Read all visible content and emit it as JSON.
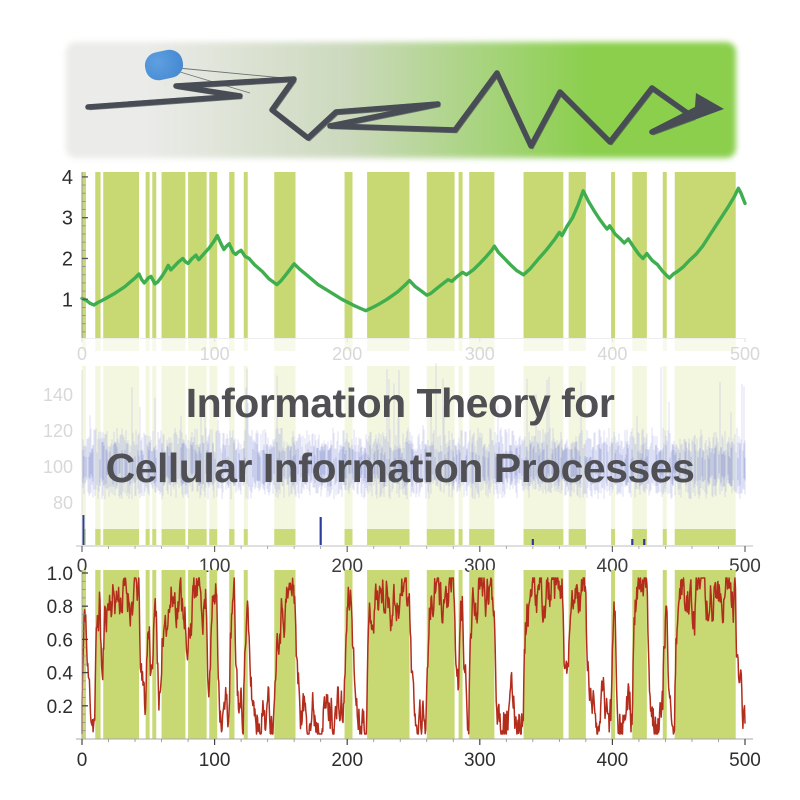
{
  "title": {
    "line1": "Information Theory for",
    "line2": "Cellular Information Processes",
    "color": "#4f4f54"
  },
  "colors": {
    "band": "#c8d973",
    "band_faint_opacity": 0.22,
    "green_line": "#3fae4f",
    "red_line": "#b22d1c",
    "noise_stroke": "rgba(168,175,224,0.40)",
    "noise_core": "rgba(148,157,214,0.55)",
    "event_spike": "#2b3d9b",
    "axis_line_light": "#d2d2d2",
    "tick_dark": "#4a4a4a",
    "label_dark": "#2e2e2e",
    "label_light": "#d8d8d8",
    "banner_gray": "#ebebe9",
    "banner_sage": "#ccd9bd",
    "banner_green": "#8bcf4d",
    "trajectory": "#484d55",
    "cell_fill": "#4285cf",
    "cell_fill_light": "#5e9fe0"
  },
  "bands": [
    [
      0,
      3
    ],
    [
      10,
      14
    ],
    [
      16,
      43
    ],
    [
      48,
      51
    ],
    [
      53,
      56
    ],
    [
      60,
      78
    ],
    [
      80,
      94
    ],
    [
      96,
      102
    ],
    [
      111,
      115
    ],
    [
      122,
      125
    ],
    [
      145,
      161
    ],
    [
      198,
      204
    ],
    [
      215,
      247
    ],
    [
      260,
      281
    ],
    [
      284,
      287
    ],
    [
      292,
      311
    ],
    [
      333,
      363
    ],
    [
      367,
      380
    ],
    [
      399,
      402
    ],
    [
      415,
      426
    ],
    [
      438,
      441
    ],
    [
      447,
      493
    ]
  ],
  "banner": {
    "trajectory": [
      [
        88,
        107
      ],
      [
        240,
        96
      ],
      [
        176,
        86
      ],
      [
        294,
        79
      ],
      [
        272,
        110
      ],
      [
        308,
        138
      ],
      [
        336,
        112
      ],
      [
        438,
        104
      ],
      [
        330,
        126
      ],
      [
        455,
        130
      ],
      [
        497,
        73
      ],
      [
        531,
        146
      ],
      [
        560,
        92
      ],
      [
        610,
        142
      ],
      [
        652,
        88
      ],
      [
        693,
        117
      ],
      [
        652,
        132
      ],
      [
        703,
        106
      ]
    ],
    "tail_lines": [
      [
        [
          178,
          68
        ],
        [
          294,
          79
        ]
      ],
      [
        [
          180,
          72
        ],
        [
          250,
          93
        ]
      ]
    ],
    "arrow_head": [
      [
        696,
        93
      ],
      [
        724,
        109
      ],
      [
        694,
        120
      ]
    ]
  },
  "chart_data": [
    {
      "id": "ligand-concentration-chart",
      "type": "line",
      "title": "",
      "xlabel": "",
      "ylabel": "",
      "x_range": [
        0,
        500
      ],
      "ylim": [
        0.05,
        4.12
      ],
      "y_ticks": [
        1,
        2,
        3,
        4
      ],
      "x_ticks": [
        0,
        100,
        200,
        300,
        400,
        500
      ],
      "x_tick_style": "light",
      "grid": false,
      "legend": "none",
      "bands": "full-height",
      "series": [
        {
          "name": "experienced-concentration",
          "points": [
            [
              0,
              1.02
            ],
            [
              3,
              0.98
            ],
            [
              6,
              0.9
            ],
            [
              9,
              0.86
            ],
            [
              12,
              0.92
            ],
            [
              15,
              0.97
            ],
            [
              18,
              1.02
            ],
            [
              25,
              1.15
            ],
            [
              32,
              1.3
            ],
            [
              40,
              1.52
            ],
            [
              43,
              1.62
            ],
            [
              45,
              1.48
            ],
            [
              47,
              1.4
            ],
            [
              50,
              1.52
            ],
            [
              52,
              1.56
            ],
            [
              55,
              1.38
            ],
            [
              57,
              1.42
            ],
            [
              60,
              1.55
            ],
            [
              63,
              1.7
            ],
            [
              65,
              1.83
            ],
            [
              67,
              1.72
            ],
            [
              70,
              1.82
            ],
            [
              73,
              1.92
            ],
            [
              76,
              2.0
            ],
            [
              78,
              1.92
            ],
            [
              80,
              1.88
            ],
            [
              83,
              2.0
            ],
            [
              86,
              2.08
            ],
            [
              88,
              1.97
            ],
            [
              92,
              2.12
            ],
            [
              96,
              2.26
            ],
            [
              99,
              2.4
            ],
            [
              102,
              2.56
            ],
            [
              105,
              2.35
            ],
            [
              107,
              2.22
            ],
            [
              109,
              2.3
            ],
            [
              111,
              2.36
            ],
            [
              114,
              2.15
            ],
            [
              116,
              2.1
            ],
            [
              118,
              2.16
            ],
            [
              120,
              2.2
            ],
            [
              123,
              2.05
            ],
            [
              126,
              2.0
            ],
            [
              130,
              1.85
            ],
            [
              136,
              1.68
            ],
            [
              141,
              1.5
            ],
            [
              147,
              1.36
            ],
            [
              150,
              1.45
            ],
            [
              155,
              1.65
            ],
            [
              160,
              1.87
            ],
            [
              164,
              1.74
            ],
            [
              170,
              1.58
            ],
            [
              178,
              1.36
            ],
            [
              186,
              1.2
            ],
            [
              196,
              1.0
            ],
            [
              205,
              0.85
            ],
            [
              211,
              0.76
            ],
            [
              214,
              0.72
            ],
            [
              218,
              0.78
            ],
            [
              224,
              0.88
            ],
            [
              230,
              1.0
            ],
            [
              238,
              1.18
            ],
            [
              244,
              1.36
            ],
            [
              247,
              1.46
            ],
            [
              251,
              1.32
            ],
            [
              256,
              1.2
            ],
            [
              260,
              1.1
            ],
            [
              263,
              1.14
            ],
            [
              267,
              1.25
            ],
            [
              272,
              1.38
            ],
            [
              276,
              1.48
            ],
            [
              279,
              1.44
            ],
            [
              283,
              1.56
            ],
            [
              287,
              1.66
            ],
            [
              290,
              1.6
            ],
            [
              295,
              1.72
            ],
            [
              300,
              1.88
            ],
            [
              305,
              2.05
            ],
            [
              309,
              2.2
            ],
            [
              311,
              2.3
            ],
            [
              314,
              2.15
            ],
            [
              318,
              2.02
            ],
            [
              323,
              1.85
            ],
            [
              328,
              1.7
            ],
            [
              333,
              1.6
            ],
            [
              338,
              1.75
            ],
            [
              344,
              1.98
            ],
            [
              350,
              2.2
            ],
            [
              356,
              2.45
            ],
            [
              360,
              2.64
            ],
            [
              362,
              2.56
            ],
            [
              366,
              2.8
            ],
            [
              370,
              3.0
            ],
            [
              374,
              3.3
            ],
            [
              378,
              3.66
            ],
            [
              382,
              3.4
            ],
            [
              386,
              3.18
            ],
            [
              390,
              2.98
            ],
            [
              394,
              2.8
            ],
            [
              396,
              2.72
            ],
            [
              398,
              2.8
            ],
            [
              402,
              2.6
            ],
            [
              406,
              2.48
            ],
            [
              409,
              2.38
            ],
            [
              412,
              2.48
            ],
            [
              416,
              2.28
            ],
            [
              420,
              2.1
            ],
            [
              423,
              2.0
            ],
            [
              426,
              2.12
            ],
            [
              430,
              1.95
            ],
            [
              434,
              1.85
            ],
            [
              438,
              1.68
            ],
            [
              441,
              1.58
            ],
            [
              443,
              1.52
            ],
            [
              446,
              1.62
            ],
            [
              449,
              1.68
            ],
            [
              453,
              1.78
            ],
            [
              458,
              1.95
            ],
            [
              463,
              2.1
            ],
            [
              468,
              2.3
            ],
            [
              473,
              2.55
            ],
            [
              478,
              2.8
            ],
            [
              483,
              3.05
            ],
            [
              488,
              3.3
            ],
            [
              492,
              3.52
            ],
            [
              495,
              3.72
            ],
            [
              497,
              3.6
            ],
            [
              500,
              3.35
            ]
          ]
        }
      ]
    },
    {
      "id": "noisy-receptor-signal-chart",
      "type": "line",
      "subtype": "dense-noise",
      "x_range": [
        0,
        500
      ],
      "ylim": [
        56,
        154
      ],
      "y_ticks": [
        80,
        100,
        120,
        140
      ],
      "y_tick_style": "light",
      "x_ticks": [
        0,
        100,
        200,
        300,
        400,
        500
      ],
      "x_tick_style": "dark",
      "grid": false,
      "bands": "faint-full-height-plus-bottom-strip",
      "noise_model": {
        "seed": 7,
        "center": 100,
        "base_up": 8,
        "var_up": 14,
        "base_down": 6,
        "var_down": 12,
        "spike_prob": 0.06,
        "spike_extra": 32,
        "floor_value": 66
      },
      "event_spikes": [
        [
          1,
          30
        ],
        [
          180,
          28
        ],
        [
          340,
          6
        ],
        [
          415,
          6
        ],
        [
          424,
          6
        ]
      ]
    },
    {
      "id": "receptor-activity-chart",
      "type": "line",
      "subtype": "noisy-telegraph",
      "x_range": [
        0,
        500
      ],
      "ylim": [
        0,
        1.018
      ],
      "y_ticks": [
        0.2,
        0.4,
        0.6,
        0.8,
        1.0
      ],
      "y_tick_labels": [
        "0.2",
        "0.4",
        "0.6",
        "0.8",
        "1.0"
      ],
      "x_ticks": [
        0,
        100,
        200,
        300,
        400,
        500
      ],
      "x_tick_style": "dark",
      "grid": false,
      "bands": "full-height",
      "telegraph_model": {
        "seed": 11,
        "high": 0.87,
        "low": 0.16,
        "relax": 0.22,
        "noise": 0.22,
        "dx": 0.4,
        "start": 0.04,
        "min": 0.03,
        "max": 0.97
      }
    }
  ]
}
